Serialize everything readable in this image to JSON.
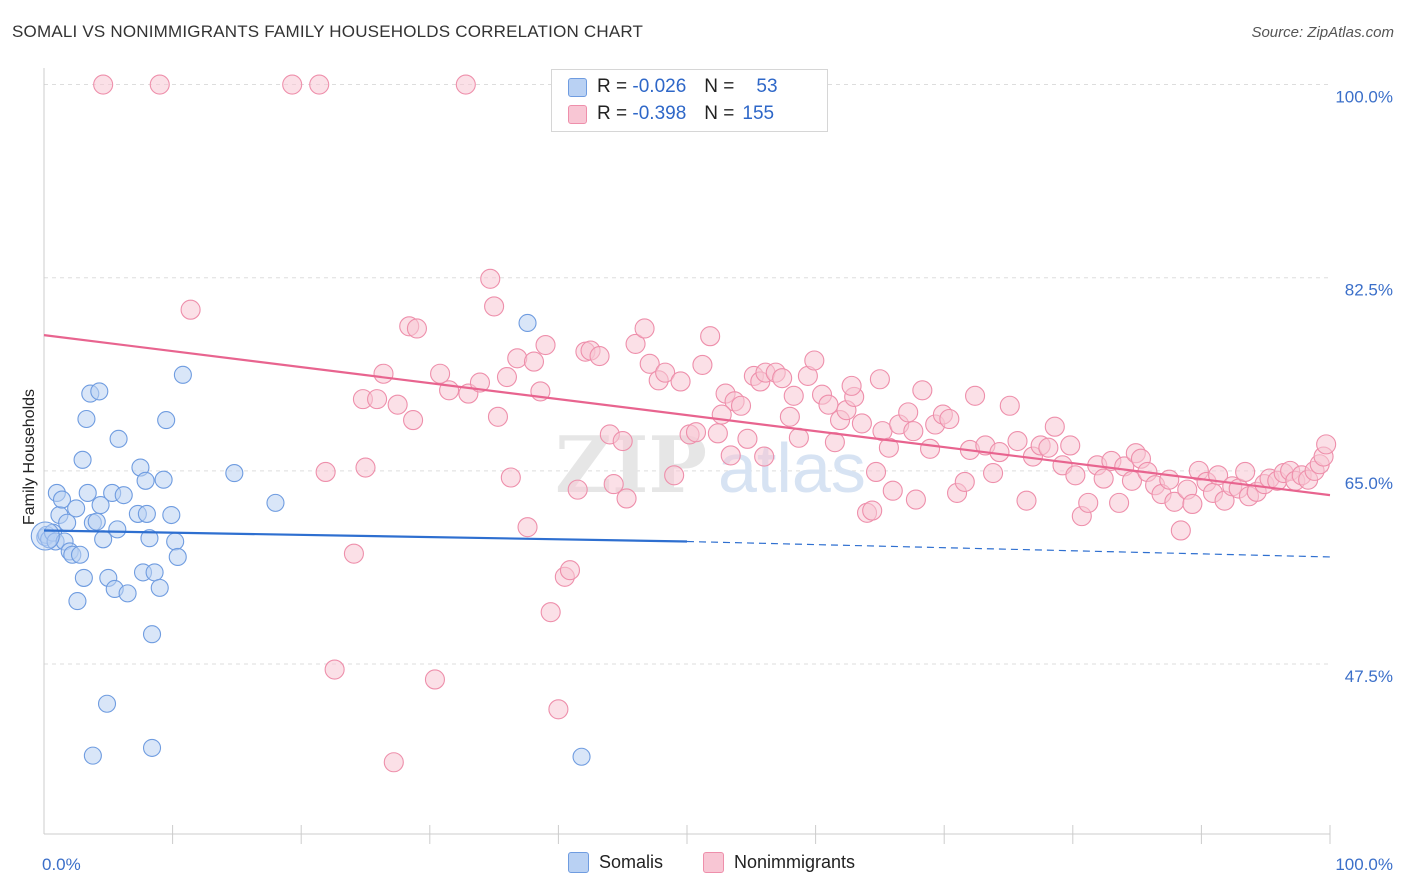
{
  "header": {
    "title": "SOMALI VS NONIMMIGRANTS FAMILY HOUSEHOLDS CORRELATION CHART",
    "source": "Source: ZipAtlas.com"
  },
  "watermark": {
    "zip": "ZIP",
    "atlas": "atlas"
  },
  "stats": {
    "r_label": "R =",
    "n_label": "N =",
    "rows": [
      {
        "series": "Somalis",
        "r": "-0.026",
        "n": "53",
        "color": "#6f9ce0"
      },
      {
        "series": "Nonimmigrants",
        "r": "-0.398",
        "n": "155",
        "color": "#ee8fab"
      }
    ]
  },
  "legend": {
    "items": [
      "Somalis",
      "Nonimmigrants"
    ]
  },
  "colors": {
    "somalis_fill": "#b9d1f3",
    "somalis_stroke": "#6f9ce0",
    "somalis_line": "#2e6fd0",
    "nonimm_fill": "#f8c6d4",
    "nonimm_stroke": "#ee8fab",
    "nonimm_line": "#e8648f",
    "tick_text": "#3b6fc9",
    "grid": "#dddddd"
  },
  "chart_data": {
    "type": "scatter",
    "title": "SOMALI VS NONIMMIGRANTS FAMILY HOUSEHOLDS CORRELATION CHART",
    "xlabel": "",
    "ylabel": "Family Households",
    "xlim": [
      0,
      100
    ],
    "ylim": [
      32.1,
      101.5
    ],
    "x_ticks": [
      "0.0%",
      "100.0%"
    ],
    "y_ticks": [
      {
        "value": 100.0,
        "label": "100.0%"
      },
      {
        "value": 82.5,
        "label": "82.5%"
      },
      {
        "value": 65.0,
        "label": "65.0%"
      },
      {
        "value": 47.5,
        "label": "47.5%"
      }
    ],
    "series": [
      {
        "name": "Somalis",
        "trend": {
          "x0": 0,
          "y0": 59.6,
          "x1": 50,
          "y1": 58.6,
          "solid_until": 50,
          "dash_to": 100,
          "y_end": 57.2
        },
        "points": [
          [
            0.1,
            59.0
          ],
          [
            0.2,
            59.2
          ],
          [
            0.4,
            58.8
          ],
          [
            0.7,
            59.4
          ],
          [
            0.9,
            58.6
          ],
          [
            1.0,
            63.0
          ],
          [
            1.2,
            61.0
          ],
          [
            1.4,
            62.4
          ],
          [
            1.6,
            58.6
          ],
          [
            1.8,
            60.3
          ],
          [
            2.0,
            57.7
          ],
          [
            2.2,
            57.4
          ],
          [
            2.5,
            61.6
          ],
          [
            2.8,
            57.4
          ],
          [
            2.6,
            53.2
          ],
          [
            3.0,
            66.0
          ],
          [
            3.1,
            55.3
          ],
          [
            3.3,
            69.7
          ],
          [
            3.4,
            63.0
          ],
          [
            3.6,
            72.0
          ],
          [
            3.8,
            60.3
          ],
          [
            4.1,
            60.4
          ],
          [
            4.3,
            72.2
          ],
          [
            4.4,
            61.9
          ],
          [
            4.6,
            58.8
          ],
          [
            5.0,
            55.3
          ],
          [
            5.3,
            63.0
          ],
          [
            5.5,
            54.3
          ],
          [
            5.7,
            59.7
          ],
          [
            5.8,
            67.9
          ],
          [
            6.2,
            62.8
          ],
          [
            6.5,
            53.9
          ],
          [
            7.3,
            61.1
          ],
          [
            7.5,
            65.3
          ],
          [
            7.7,
            55.8
          ],
          [
            7.9,
            64.1
          ],
          [
            8.0,
            61.1
          ],
          [
            8.2,
            58.9
          ],
          [
            8.4,
            50.2
          ],
          [
            8.6,
            55.8
          ],
          [
            9.0,
            54.4
          ],
          [
            9.3,
            64.2
          ],
          [
            9.5,
            69.6
          ],
          [
            9.9,
            61.0
          ],
          [
            10.2,
            58.6
          ],
          [
            10.4,
            57.2
          ],
          [
            10.8,
            73.7
          ],
          [
            14.8,
            64.8
          ],
          [
            18.0,
            62.1
          ],
          [
            4.9,
            43.9
          ],
          [
            3.8,
            39.2
          ],
          [
            8.4,
            39.9
          ],
          [
            41.8,
            39.1
          ],
          [
            37.6,
            78.4
          ]
        ]
      },
      {
        "name": "Nonimmigrants",
        "trend": {
          "x0": 0,
          "y0": 77.3,
          "x1": 100,
          "y1": 62.8
        },
        "points": [
          [
            4.6,
            100.0
          ],
          [
            9.0,
            100.0
          ],
          [
            19.3,
            100.0
          ],
          [
            21.4,
            100.0
          ],
          [
            32.8,
            100.0
          ],
          [
            11.4,
            79.6
          ],
          [
            21.9,
            64.9
          ],
          [
            22.6,
            47.0
          ],
          [
            24.1,
            57.5
          ],
          [
            25.0,
            65.3
          ],
          [
            24.8,
            71.5
          ],
          [
            25.9,
            71.5
          ],
          [
            26.4,
            73.8
          ],
          [
            27.5,
            71.0
          ],
          [
            27.2,
            38.6
          ],
          [
            28.4,
            78.1
          ],
          [
            29.0,
            77.9
          ],
          [
            28.7,
            69.6
          ],
          [
            30.4,
            46.1
          ],
          [
            30.8,
            73.8
          ],
          [
            31.5,
            72.3
          ],
          [
            33.0,
            72.0
          ],
          [
            33.9,
            73.0
          ],
          [
            34.7,
            82.4
          ],
          [
            35.0,
            79.9
          ],
          [
            35.3,
            69.9
          ],
          [
            36.0,
            73.5
          ],
          [
            36.3,
            64.4
          ],
          [
            36.8,
            75.2
          ],
          [
            37.6,
            59.9
          ],
          [
            38.1,
            74.9
          ],
          [
            38.6,
            72.2
          ],
          [
            39.0,
            76.4
          ],
          [
            39.4,
            52.2
          ],
          [
            40.0,
            43.4
          ],
          [
            40.5,
            55.4
          ],
          [
            40.9,
            56.0
          ],
          [
            41.5,
            63.3
          ],
          [
            42.1,
            75.8
          ],
          [
            42.5,
            75.9
          ],
          [
            43.2,
            75.4
          ],
          [
            44.0,
            68.3
          ],
          [
            44.3,
            63.8
          ],
          [
            45.0,
            67.7
          ],
          [
            45.3,
            62.5
          ],
          [
            46.0,
            76.5
          ],
          [
            46.7,
            77.9
          ],
          [
            47.1,
            74.7
          ],
          [
            47.8,
            73.2
          ],
          [
            48.3,
            73.9
          ],
          [
            49.0,
            64.6
          ],
          [
            49.5,
            73.1
          ],
          [
            50.2,
            68.3
          ],
          [
            50.7,
            68.5
          ],
          [
            51.2,
            74.6
          ],
          [
            51.8,
            77.2
          ],
          [
            52.4,
            68.4
          ],
          [
            53.0,
            72.0
          ],
          [
            53.4,
            66.4
          ],
          [
            53.7,
            71.3
          ],
          [
            54.2,
            70.9
          ],
          [
            54.7,
            67.9
          ],
          [
            55.2,
            73.6
          ],
          [
            55.7,
            73.1
          ],
          [
            56.1,
            73.9
          ],
          [
            56.9,
            73.9
          ],
          [
            57.4,
            73.4
          ],
          [
            58.0,
            69.9
          ],
          [
            58.7,
            68.0
          ],
          [
            59.4,
            73.6
          ],
          [
            59.9,
            75.0
          ],
          [
            60.5,
            71.9
          ],
          [
            61.0,
            71.0
          ],
          [
            61.5,
            67.6
          ],
          [
            61.9,
            69.6
          ],
          [
            62.4,
            70.5
          ],
          [
            63.0,
            71.7
          ],
          [
            63.6,
            69.3
          ],
          [
            64.0,
            61.2
          ],
          [
            64.4,
            61.4
          ],
          [
            65.0,
            73.3
          ],
          [
            65.2,
            68.6
          ],
          [
            65.7,
            67.1
          ],
          [
            66.0,
            63.2
          ],
          [
            66.5,
            69.2
          ],
          [
            67.2,
            70.3
          ],
          [
            67.6,
            68.6
          ],
          [
            68.3,
            72.3
          ],
          [
            68.9,
            67.0
          ],
          [
            69.3,
            69.2
          ],
          [
            69.9,
            70.1
          ],
          [
            70.4,
            69.7
          ],
          [
            71.0,
            63.0
          ],
          [
            71.6,
            64.0
          ],
          [
            72.0,
            66.9
          ],
          [
            72.4,
            71.8
          ],
          [
            73.2,
            67.3
          ],
          [
            73.8,
            64.8
          ],
          [
            74.3,
            66.7
          ],
          [
            75.1,
            70.9
          ],
          [
            75.7,
            67.7
          ],
          [
            76.4,
            62.3
          ],
          [
            76.9,
            66.3
          ],
          [
            77.5,
            67.3
          ],
          [
            78.1,
            67.1
          ],
          [
            78.6,
            69.0
          ],
          [
            79.2,
            65.5
          ],
          [
            79.8,
            67.3
          ],
          [
            80.2,
            64.6
          ],
          [
            80.7,
            60.9
          ],
          [
            81.2,
            62.1
          ],
          [
            81.9,
            65.5
          ],
          [
            82.4,
            64.3
          ],
          [
            83.0,
            65.9
          ],
          [
            83.6,
            62.1
          ],
          [
            84.0,
            65.4
          ],
          [
            84.6,
            64.1
          ],
          [
            84.9,
            66.6
          ],
          [
            85.3,
            66.1
          ],
          [
            85.8,
            64.9
          ],
          [
            86.4,
            63.7
          ],
          [
            86.9,
            62.9
          ],
          [
            87.5,
            64.2
          ],
          [
            87.9,
            62.2
          ],
          [
            88.4,
            59.6
          ],
          [
            88.9,
            63.3
          ],
          [
            89.3,
            62.0
          ],
          [
            89.8,
            65.0
          ],
          [
            90.4,
            64.0
          ],
          [
            90.9,
            63.0
          ],
          [
            91.3,
            64.6
          ],
          [
            91.8,
            62.3
          ],
          [
            92.4,
            63.6
          ],
          [
            92.9,
            63.4
          ],
          [
            93.4,
            64.9
          ],
          [
            93.7,
            62.7
          ],
          [
            94.3,
            63.1
          ],
          [
            94.9,
            63.8
          ],
          [
            95.3,
            64.3
          ],
          [
            95.9,
            64.1
          ],
          [
            96.4,
            64.8
          ],
          [
            96.9,
            65.0
          ],
          [
            97.3,
            64.1
          ],
          [
            97.8,
            64.6
          ],
          [
            98.3,
            64.2
          ],
          [
            98.8,
            65.0
          ],
          [
            99.2,
            65.6
          ],
          [
            99.5,
            66.3
          ],
          [
            99.7,
            67.4
          ],
          [
            56.0,
            66.3
          ],
          [
            52.7,
            70.1
          ],
          [
            58.3,
            71.8
          ],
          [
            62.8,
            72.7
          ],
          [
            64.7,
            64.9
          ],
          [
            67.8,
            62.4
          ]
        ]
      }
    ]
  }
}
